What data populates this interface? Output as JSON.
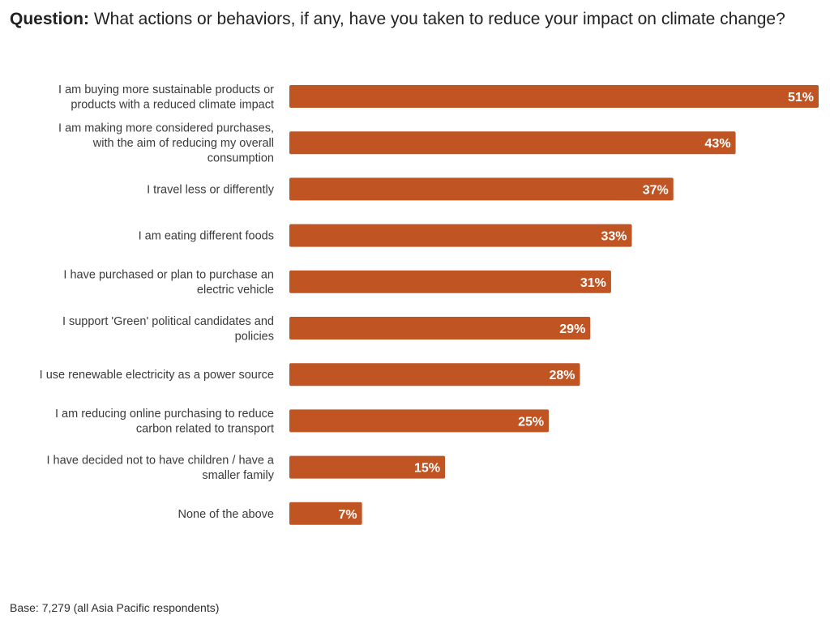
{
  "question": {
    "label": "Question:",
    "text": " What actions or behaviors, if any, have you taken to reduce your impact on climate change?"
  },
  "base_note": "Base: 7,279 (all Asia Pacific respondents)",
  "colors": {
    "bar": "#c05423",
    "bar_label": "#ffffff",
    "category_text": "#3a3a3a"
  },
  "chart_data": {
    "type": "bar",
    "orientation": "horizontal",
    "title": "",
    "xlabel": "",
    "ylabel": "",
    "value_unit": "%",
    "xlim": [
      0,
      51
    ],
    "grid": false,
    "categories": [
      [
        "I am buying more sustainable products or",
        "products with a reduced climate impact"
      ],
      [
        "I am making more considered purchases,",
        "with the aim of reducing my overall",
        "consumption"
      ],
      [
        "I travel less or differently"
      ],
      [
        "I am eating different foods"
      ],
      [
        "I have purchased or plan to purchase an",
        "electric vehicle"
      ],
      [
        "I support 'Green' political candidates and",
        "policies"
      ],
      [
        "I use renewable electricity as a power source"
      ],
      [
        "I am reducing online purchasing to reduce",
        "carbon related to transport"
      ],
      [
        "I have decided not to have children / have a",
        "smaller family"
      ],
      [
        "None of the above"
      ]
    ],
    "values": [
      51,
      43,
      37,
      33,
      31,
      29,
      28,
      25,
      15,
      7
    ],
    "data_labels": [
      "51%",
      "43%",
      "37%",
      "33%",
      "31%",
      "29%",
      "28%",
      "25%",
      "15%",
      "7%"
    ]
  }
}
